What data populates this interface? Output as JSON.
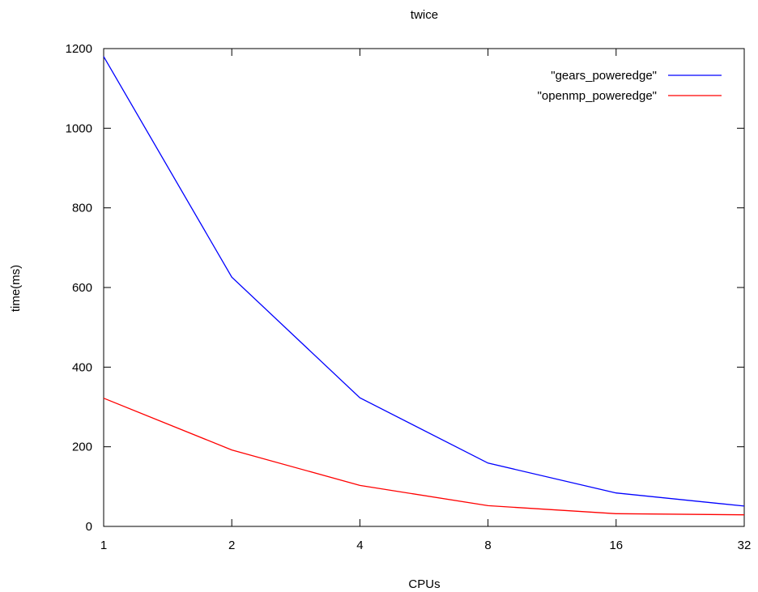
{
  "chart_data": {
    "type": "line",
    "title": "twice",
    "xlabel": "CPUs",
    "ylabel": "time(ms)",
    "x_scale": "log2",
    "x": [
      1,
      2,
      4,
      8,
      16,
      32
    ],
    "x_tick_labels": [
      "1",
      "2",
      "4",
      "8",
      "16",
      "32"
    ],
    "xlim": [
      1,
      32
    ],
    "ylim": [
      0,
      1200
    ],
    "y_ticks": [
      0,
      200,
      400,
      600,
      800,
      1000,
      1200
    ],
    "grid": false,
    "legend_position": "top-right",
    "series": [
      {
        "name": "\"gears_poweredge\"",
        "color": "#0000ff",
        "values": [
          1180,
          626,
          323,
          159,
          84,
          51
        ]
      },
      {
        "name": "\"openmp_poweredge\"",
        "color": "#ff0000",
        "values": [
          322,
          192,
          103,
          52,
          32,
          29
        ]
      }
    ]
  }
}
